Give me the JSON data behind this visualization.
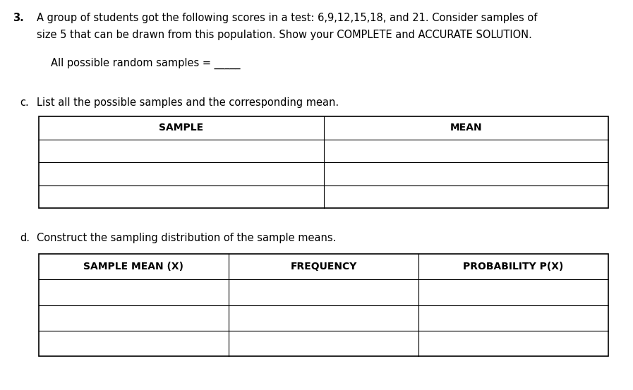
{
  "title_number": "3.",
  "title_text1": "A group of students got the following scores in a test: 6,9,12,15,18, and 21. Consider samples of",
  "title_text2": "size 5 that can be drawn from this population. Show your COMPLETE and ACCURATE SOLUTION.",
  "random_samples_label": "All possible random samples = _____",
  "part_c_label": "c.",
  "part_c_text": "List all the possible samples and the corresponding mean.",
  "table_c_headers": [
    "SAMPLE",
    "MEAN"
  ],
  "part_d_label": "d.",
  "part_d_text": "Construct the sampling distribution of the sample means.",
  "table_d_headers": [
    "SAMPLE MEAN (X)",
    "FREQUENCY",
    "PROBABILITY P(X)"
  ],
  "bg_color": "#ffffff",
  "text_color": "#000000",
  "font_size_body": 10.5,
  "font_size_header": 10.0,
  "fig_width": 8.97,
  "fig_height": 5.53,
  "dpi": 100
}
